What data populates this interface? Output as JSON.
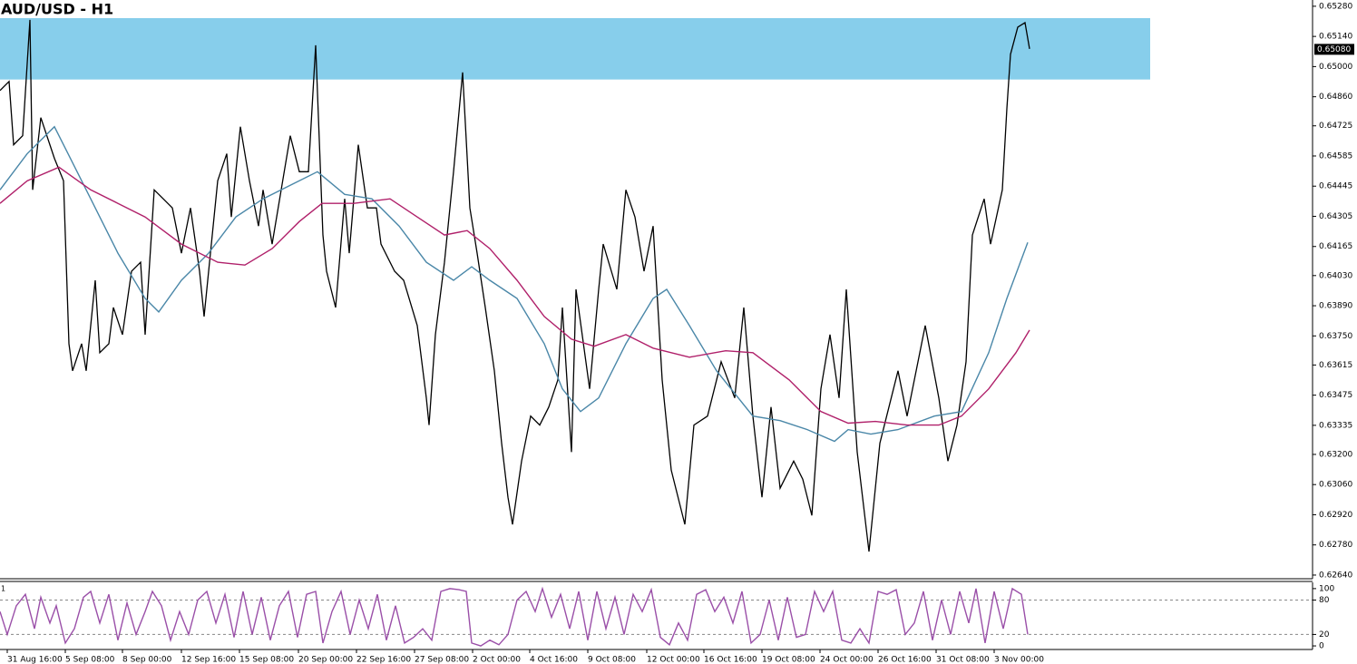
{
  "chart_data": [
    {
      "type": "line",
      "title": "AUD/USD - H1",
      "xlim": [
        0,
        1447
      ],
      "ylim": [
        0.62623,
        0.65309
      ],
      "yticks": [
        {
          "value": 0.6528,
          "label": "0.65280"
        },
        {
          "value": 0.6514,
          "label": "0.65140"
        },
        {
          "value": 0.65,
          "label": "0.65000"
        },
        {
          "value": 0.6486,
          "label": "0.64860"
        },
        {
          "value": 0.64725,
          "label": "0.64725"
        },
        {
          "value": 0.64585,
          "label": "0.64585"
        },
        {
          "value": 0.64445,
          "label": "0.64445"
        },
        {
          "value": 0.64305,
          "label": "0.64305"
        },
        {
          "value": 0.64165,
          "label": "0.64165"
        },
        {
          "value": 0.6403,
          "label": "0.64030"
        },
        {
          "value": 0.6389,
          "label": "0.63890"
        },
        {
          "value": 0.6375,
          "label": "0.63750"
        },
        {
          "value": 0.63615,
          "label": "0.63615"
        },
        {
          "value": 0.63475,
          "label": "0.63475"
        },
        {
          "value": 0.63335,
          "label": "0.63335"
        },
        {
          "value": 0.632,
          "label": "0.63200"
        },
        {
          "value": 0.6306,
          "label": "0.63060"
        },
        {
          "value": 0.6292,
          "label": "0.62920"
        },
        {
          "value": 0.6278,
          "label": "0.62780"
        },
        {
          "value": 0.6264,
          "label": "0.62640"
        }
      ],
      "last_price": {
        "value": 0.6508,
        "label": "0.65080"
      },
      "zone": {
        "x": [
          0,
          1268
        ],
        "y": [
          0.6494,
          0.65225
        ],
        "color": "#87ceeb"
      },
      "series": [
        {
          "color": "#000000",
          "x": [
            0,
            10,
            15,
            25,
            33,
            36,
            45,
            60,
            70,
            76,
            80,
            90,
            95,
            105,
            110,
            120,
            125,
            135,
            145,
            155,
            160,
            170,
            180,
            190,
            200,
            210,
            220,
            225,
            235,
            240,
            250,
            255,
            265,
            275,
            285,
            290,
            300,
            315,
            320,
            330,
            340,
            348,
            356,
            360,
            370,
            380,
            385,
            395,
            405,
            415,
            420,
            435,
            445,
            460,
            470,
            473,
            480,
            490,
            500,
            510,
            518,
            526,
            535,
            545,
            553,
            560,
            565,
            575,
            585,
            595,
            605,
            615,
            620,
            630,
            635,
            650,
            660,
            665,
            680,
            690,
            700,
            710,
            720,
            730,
            740,
            755,
            765,
            780,
            795,
            810,
            820,
            830,
            840,
            850,
            860,
            875,
            885,
            895,
            905,
            915,
            925,
            933,
            945,
            958,
            970,
            990,
            1000,
            1020,
            1035,
            1045,
            1055,
            1065,
            1072,
            1085,
            1092,
            1105,
            1110,
            1114,
            1122,
            1130,
            1135
          ],
          "values": [
            0.64889,
            0.64931,
            0.64637,
            0.64679,
            0.65217,
            0.64428,
            0.64763,
            0.64574,
            0.6447,
            0.63714,
            0.63588,
            0.63714,
            0.63588,
            0.64008,
            0.63672,
            0.63714,
            0.63882,
            0.63756,
            0.6405,
            0.64092,
            0.63756,
            0.64428,
            0.64386,
            0.64344,
            0.64134,
            0.64344,
            0.6405,
            0.6384,
            0.6426,
            0.6447,
            0.64596,
            0.64302,
            0.64721,
            0.6447,
            0.6426,
            0.64428,
            0.64176,
            0.64554,
            0.64679,
            0.64512,
            0.64512,
            0.65099,
            0.64218,
            0.6405,
            0.63882,
            0.64386,
            0.64134,
            0.64637,
            0.64344,
            0.64344,
            0.64176,
            0.6405,
            0.64008,
            0.63798,
            0.63462,
            0.63336,
            0.63756,
            0.64092,
            0.64512,
            0.64973,
            0.64344,
            0.64134,
            0.63882,
            0.63588,
            0.63252,
            0.63001,
            0.62875,
            0.63169,
            0.63378,
            0.63336,
            0.6342,
            0.63546,
            0.63882,
            0.63211,
            0.63966,
            0.63504,
            0.63966,
            0.64176,
            0.63966,
            0.64428,
            0.64302,
            0.6405,
            0.6426,
            0.63546,
            0.63127,
            0.62875,
            0.63336,
            0.63378,
            0.6363,
            0.63462,
            0.63882,
            0.63378,
            0.63001,
            0.6342,
            0.63043,
            0.63169,
            0.63085,
            0.62917,
            0.63504,
            0.63756,
            0.63462,
            0.63966,
            0.63211,
            0.62749,
            0.63252,
            0.63588,
            0.63378,
            0.63798,
            0.63462,
            0.63169,
            0.63336,
            0.6363,
            0.64218,
            0.64386,
            0.64176,
            0.64428,
            0.64805,
            0.65057,
            0.65183,
            0.65204,
            0.65082
          ]
        },
        {
          "color": "#4a87a8",
          "x": [
            0,
            30,
            60,
            75,
            100,
            130,
            160,
            175,
            200,
            230,
            260,
            290,
            320,
            350,
            380,
            410,
            440,
            470,
            500,
            520,
            540,
            570,
            600,
            620,
            640,
            660,
            690,
            720,
            735,
            760,
            790,
            830,
            860,
            890,
            920,
            935,
            960,
            990,
            1030,
            1060,
            1090,
            1110,
            1133
          ],
          "values": [
            0.64428,
            0.64596,
            0.64721,
            0.64596,
            0.64386,
            0.64134,
            0.63924,
            0.63861,
            0.64008,
            0.64134,
            0.64302,
            0.64386,
            0.64449,
            0.64512,
            0.64407,
            0.64386,
            0.6426,
            0.64092,
            0.64008,
            0.64071,
            0.64008,
            0.63924,
            0.63714,
            0.63504,
            0.63399,
            0.63462,
            0.63714,
            0.63924,
            0.63966,
            0.63798,
            0.63588,
            0.63378,
            0.63357,
            0.63315,
            0.63261,
            0.63315,
            0.63294,
            0.63315,
            0.63378,
            0.63399,
            0.63672,
            0.63924,
            0.64184
          ]
        },
        {
          "color": "#b0206a",
          "x": [
            0,
            30,
            65,
            100,
            130,
            160,
            200,
            240,
            270,
            300,
            330,
            355,
            390,
            430,
            460,
            490,
            515,
            540,
            570,
            600,
            630,
            655,
            690,
            720,
            760,
            800,
            830,
            870,
            905,
            935,
            965,
            1000,
            1035,
            1060,
            1090,
            1120,
            1135
          ],
          "values": [
            0.64365,
            0.6447,
            0.64533,
            0.64428,
            0.64365,
            0.64302,
            0.64176,
            0.64092,
            0.64079,
            0.64155,
            0.64281,
            0.64365,
            0.64365,
            0.64386,
            0.64302,
            0.64218,
            0.64239,
            0.64155,
            0.64008,
            0.6384,
            0.63735,
            0.63702,
            0.63756,
            0.63693,
            0.63651,
            0.63681,
            0.63672,
            0.63546,
            0.63399,
            0.63345,
            0.63353,
            0.63336,
            0.63336,
            0.63378,
            0.63504,
            0.63672,
            0.63777
          ]
        }
      ]
    },
    {
      "type": "line",
      "indicator_label": "1",
      "xlim": [
        0,
        1447
      ],
      "ylim": [
        -6.25,
        110.9
      ],
      "yticks": [
        100,
        80,
        20,
        0
      ],
      "levels": [
        80,
        20
      ],
      "xticks": [
        {
          "value": 8,
          "label": "31 Aug 16:00"
        },
        {
          "value": 72,
          "label": "5 Sep 08:00"
        },
        {
          "value": 135,
          "label": "8 Sep 00:00"
        },
        {
          "value": 200,
          "label": "12 Sep 16:00"
        },
        {
          "value": 264,
          "label": "15 Sep 08:00"
        },
        {
          "value": 329,
          "label": "20 Sep 00:00"
        },
        {
          "value": 393,
          "label": "22 Sep 16:00"
        },
        {
          "value": 457,
          "label": "27 Sep 08:00"
        },
        {
          "value": 521,
          "label": "2 Oct 00:00"
        },
        {
          "value": 584,
          "label": "4 Oct 16:00"
        },
        {
          "value": 648,
          "label": "9 Oct 08:00"
        },
        {
          "value": 713,
          "label": "12 Oct 00:00"
        },
        {
          "value": 776,
          "label": "16 Oct 16:00"
        },
        {
          "value": 840,
          "label": "19 Oct 08:00"
        },
        {
          "value": 904,
          "label": "24 Oct 00:00"
        },
        {
          "value": 968,
          "label": "26 Oct 16:00"
        },
        {
          "value": 1032,
          "label": "31 Oct 08:00"
        },
        {
          "value": 1096,
          "label": "3 Nov 00:00"
        }
      ],
      "series": [
        {
          "color": "#9a4fa8",
          "x": [
            0,
            8,
            18,
            28,
            38,
            45,
            55,
            62,
            72,
            82,
            92,
            100,
            110,
            120,
            130,
            140,
            150,
            160,
            168,
            178,
            188,
            198,
            208,
            218,
            228,
            238,
            248,
            258,
            268,
            278,
            288,
            298,
            308,
            318,
            328,
            338,
            348,
            356,
            366,
            376,
            386,
            396,
            406,
            416,
            426,
            436,
            446,
            456,
            466,
            476,
            486,
            496,
            506,
            514,
            520,
            530,
            540,
            550,
            560,
            570,
            580,
            590,
            598,
            608,
            618,
            628,
            638,
            648,
            658,
            668,
            678,
            688,
            698,
            708,
            718,
            728,
            738,
            748,
            758,
            768,
            778,
            788,
            798,
            808,
            818,
            828,
            838,
            848,
            858,
            868,
            878,
            888,
            898,
            908,
            918,
            928,
            938,
            948,
            958,
            968,
            978,
            988,
            998,
            1008,
            1018,
            1028,
            1038,
            1048,
            1058,
            1068,
            1076,
            1086,
            1096,
            1106,
            1116,
            1126,
            1133
          ],
          "values": [
            60,
            20,
            70,
            90,
            30,
            85,
            40,
            70,
            5,
            30,
            85,
            95,
            40,
            90,
            10,
            75,
            20,
            60,
            95,
            70,
            10,
            60,
            20,
            80,
            95,
            40,
            90,
            15,
            95,
            20,
            85,
            10,
            70,
            95,
            15,
            90,
            95,
            5,
            60,
            95,
            20,
            80,
            30,
            90,
            10,
            70,
            5,
            15,
            30,
            10,
            95,
            100,
            98,
            95,
            5,
            0,
            10,
            2,
            20,
            80,
            95,
            60,
            100,
            50,
            90,
            30,
            95,
            10,
            95,
            30,
            85,
            20,
            90,
            60,
            98,
            15,
            2,
            40,
            10,
            90,
            98,
            60,
            85,
            40,
            95,
            5,
            20,
            80,
            10,
            85,
            15,
            20,
            95,
            60,
            95,
            10,
            5,
            30,
            5,
            95,
            90,
            98,
            20,
            40,
            95,
            10,
            80,
            20,
            95,
            40,
            100,
            5,
            95,
            30,
            100,
            90,
            20
          ]
        }
      ]
    }
  ]
}
